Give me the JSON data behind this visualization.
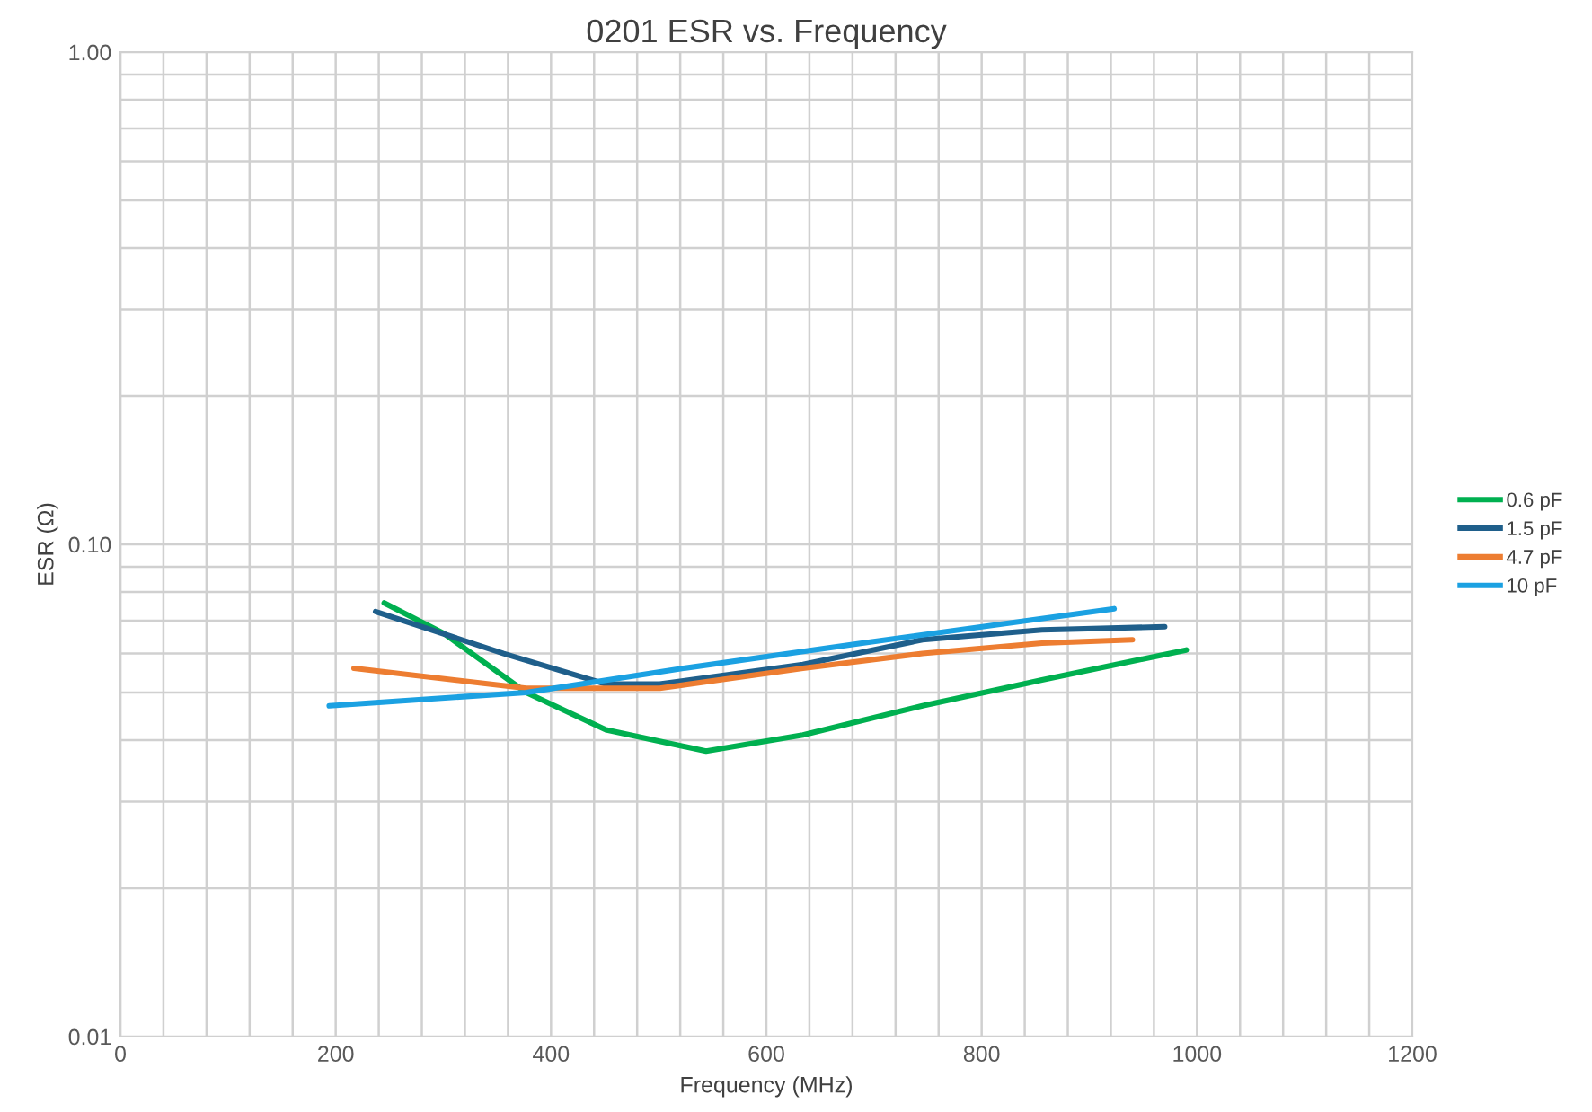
{
  "chart_data": {
    "type": "line",
    "title": "0201 ESR vs. Frequency",
    "xlabel": "Frequency (MHz)",
    "ylabel": "ESR (Ω)",
    "log": "y",
    "grid": true,
    "legend": "right",
    "marker": "none",
    "line_style": "solid",
    "xlim": [
      0,
      1200
    ],
    "ylim": [
      0.01,
      1
    ],
    "xticks": [
      0,
      {
        "value": 40,
        "label": null
      },
      {
        "value": 80,
        "label": null
      },
      {
        "value": 120,
        "label": null
      },
      {
        "value": 160,
        "label": null
      },
      200,
      {
        "value": 240,
        "label": null
      },
      {
        "value": 280,
        "label": null
      },
      {
        "value": 320,
        "label": null
      },
      {
        "value": 360,
        "label": null
      },
      400,
      {
        "value": 440,
        "label": null
      },
      {
        "value": 480,
        "label": null
      },
      {
        "value": 520,
        "label": null
      },
      {
        "value": 560,
        "label": null
      },
      600,
      {
        "value": 640,
        "label": null
      },
      {
        "value": 680,
        "label": null
      },
      {
        "value": 720,
        "label": null
      },
      {
        "value": 760,
        "label": null
      },
      800,
      {
        "value": 840,
        "label": null
      },
      {
        "value": 880,
        "label": null
      },
      {
        "value": 920,
        "label": null
      },
      {
        "value": 960,
        "label": null
      },
      1000,
      {
        "value": 1040,
        "label": null
      },
      {
        "value": 1080,
        "label": null
      },
      {
        "value": 1120,
        "label": null
      },
      {
        "value": 1160,
        "label": null
      },
      1200
    ],
    "yticks": [
      {
        "value": 0.01,
        "label": "0.01"
      },
      {
        "value": 0.02,
        "label": null
      },
      {
        "value": 0.03,
        "label": null
      },
      {
        "value": 0.04,
        "label": null
      },
      {
        "value": 0.05,
        "label": null
      },
      {
        "value": 0.06,
        "label": null
      },
      {
        "value": 0.07,
        "label": null
      },
      {
        "value": 0.08,
        "label": null
      },
      {
        "value": 0.09,
        "label": null
      },
      {
        "value": 0.1,
        "label": "0.10"
      },
      {
        "value": 0.2,
        "label": null
      },
      {
        "value": 0.3,
        "label": null
      },
      {
        "value": 0.4,
        "label": null
      },
      {
        "value": 0.5,
        "label": null
      },
      {
        "value": 0.6,
        "label": null
      },
      {
        "value": 0.7,
        "label": null
      },
      {
        "value": 0.8,
        "label": null
      },
      {
        "value": 0.9,
        "label": null
      },
      {
        "value": 1,
        "label": "1.00"
      }
    ],
    "series": [
      {
        "name": "0.6 pF",
        "color": "#00b050",
        "x": [
          245,
          300,
          377,
          451,
          544,
          634,
          745,
          856,
          990
        ],
        "values": [
          0.076,
          0.066,
          0.05,
          0.042,
          0.038,
          0.041,
          0.047,
          0.053,
          0.061
        ]
      },
      {
        "name": "1.5 pF",
        "color": "#1f5f8b",
        "x": [
          237,
          356,
          451,
          501,
          634,
          745,
          856,
          970
        ],
        "values": [
          0.073,
          0.06,
          0.052,
          0.052,
          0.057,
          0.064,
          0.067,
          0.068
        ]
      },
      {
        "name": "4.7 pF",
        "color": "#ed7d31",
        "x": [
          217,
          377,
          501,
          634,
          745,
          856,
          940
        ],
        "values": [
          0.056,
          0.051,
          0.051,
          0.056,
          0.06,
          0.063,
          0.064
        ]
      },
      {
        "name": "10 pF",
        "color": "#1ba1e2",
        "x": [
          194,
          377,
          523,
          689,
          923
        ],
        "values": [
          0.047,
          0.05,
          0.056,
          0.063,
          0.074
        ]
      }
    ]
  }
}
